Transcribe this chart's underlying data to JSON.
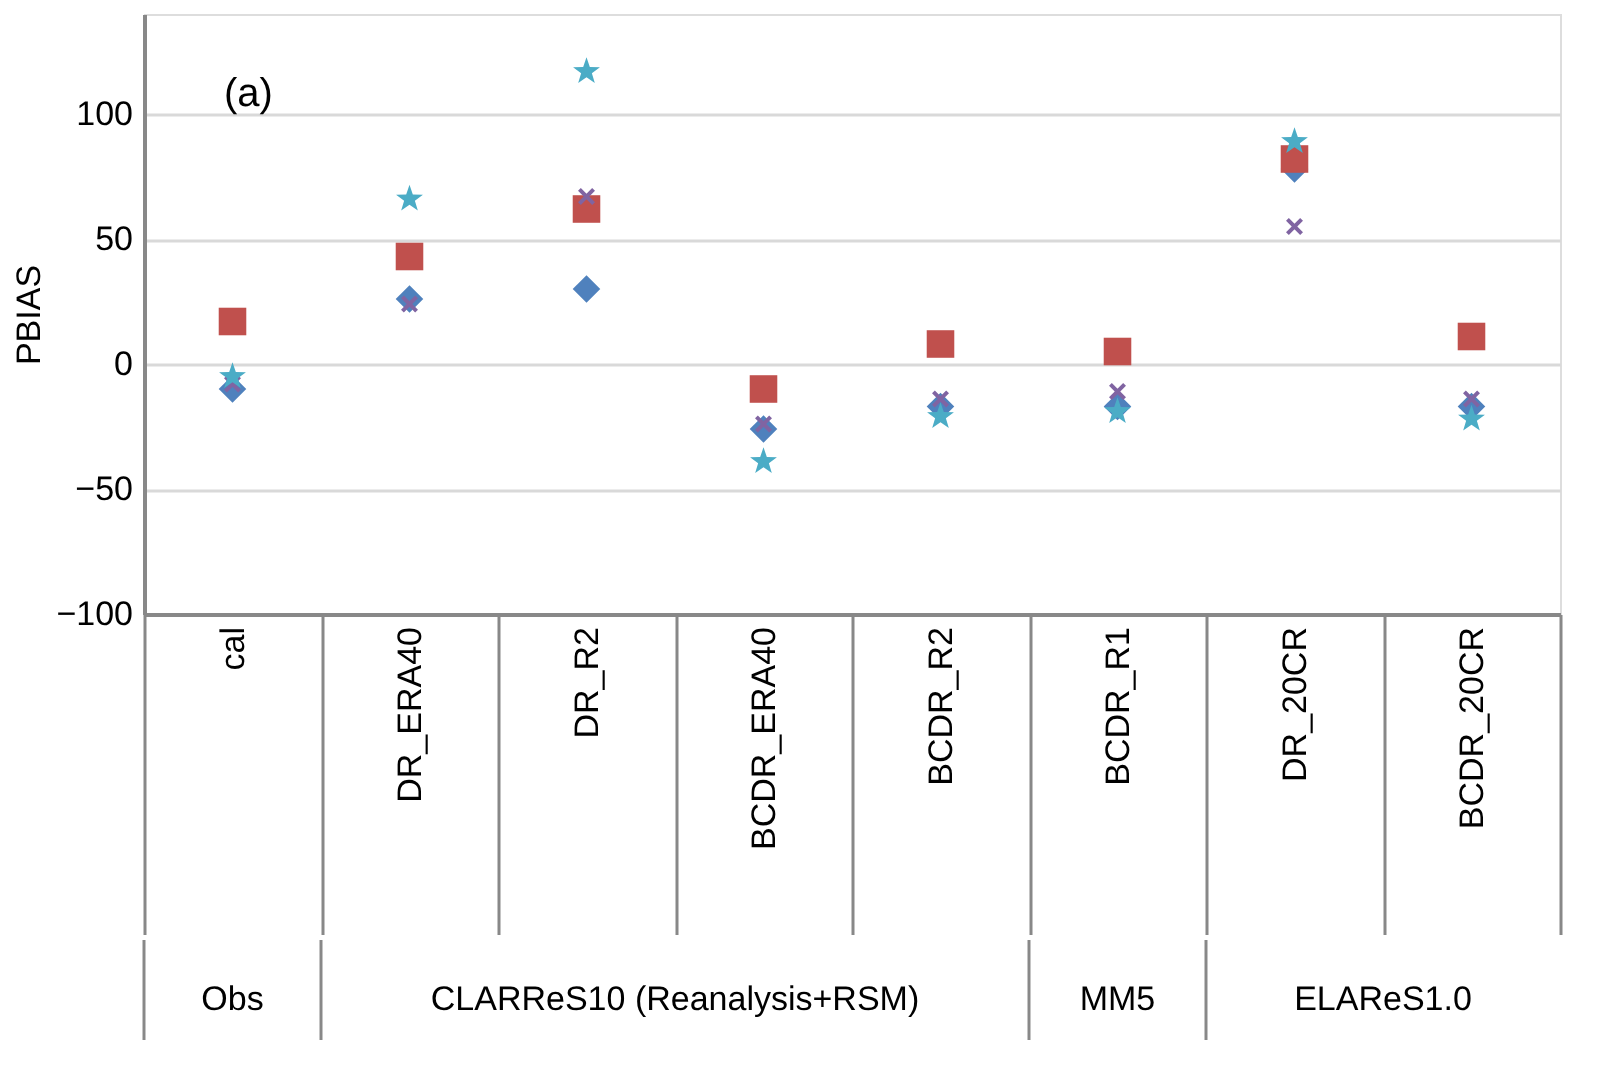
{
  "chart_data": {
    "type": "scatter",
    "ylabel": "PBIAS",
    "categories": [
      "cal",
      "DR_ERA40",
      "DR_R2",
      "BCDR_ERA40",
      "BCDR_R2",
      "BCDR_R1",
      "DR_20CR",
      "BCDR_20CR"
    ],
    "series": [
      {
        "color": "#4f81bd",
        "marker": "diamond",
        "values": [
          -10,
          26,
          30,
          -26,
          -17,
          -17,
          78,
          -17
        ]
      },
      {
        "color": "#c0504d",
        "marker": "square",
        "values": [
          17,
          43,
          62,
          -10,
          8,
          5,
          82,
          11
        ]
      },
      {
        "color": "#8064a2",
        "marker": "cross",
        "values": [
          -8,
          24,
          67,
          -24,
          -14,
          -11,
          55,
          -14
        ]
      },
      {
        "color": "#4bacc6",
        "marker": "star",
        "values": [
          -5,
          66,
          117,
          -39,
          -21,
          -19,
          89,
          -22
        ]
      }
    ],
    "ylim": [
      -100,
      140
    ],
    "yticks": [
      -100,
      -50,
      0,
      50,
      100
    ],
    "grid": "y",
    "annotations": [
      "(a)",
      "Obs",
      "CLARReS10 (Reanalysis+RSM)",
      "MM5",
      "ELAReS1.0"
    ]
  }
}
